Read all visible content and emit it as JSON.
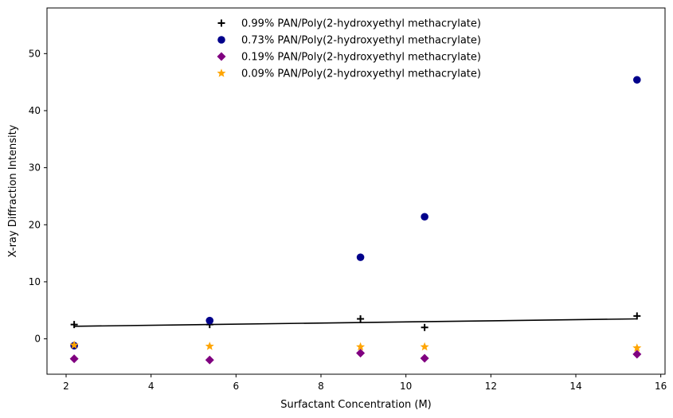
{
  "chart_data": {
    "type": "scatter",
    "title": "",
    "xlabel": "Surfactant Concentration (M)",
    "ylabel": "X-ray Diffraction Intensity",
    "xlim": [
      1.55,
      16.1
    ],
    "ylim": [
      -6.2,
      58.0
    ],
    "xticks": [
      2,
      4,
      6,
      8,
      10,
      12,
      14,
      16
    ],
    "yticks": [
      0,
      10,
      20,
      30,
      40,
      50
    ],
    "grid": false,
    "legend_position": "top-center",
    "series": [
      {
        "name": "0.99% PAN/Poly(2-hydroxyethyl methacrylate)",
        "marker": "plus",
        "color": "#000000",
        "x": [
          2.19,
          5.38,
          8.93,
          10.44,
          15.44
        ],
        "y": [
          2.5,
          2.5,
          3.5,
          2.0,
          4.0
        ]
      },
      {
        "name": "0.73% PAN/Poly(2-hydroxyethyl methacrylate)",
        "marker": "circle",
        "color": "#00008b",
        "x": [
          2.19,
          5.38,
          8.93,
          10.44,
          15.44
        ],
        "y": [
          -1.2,
          3.2,
          14.3,
          21.4,
          45.4
        ]
      },
      {
        "name": "0.19% PAN/Poly(2-hydroxyethyl methacrylate)",
        "marker": "diamond",
        "color": "#800080",
        "x": [
          2.19,
          5.38,
          8.93,
          10.44,
          15.44
        ],
        "y": [
          -3.5,
          -3.7,
          -2.5,
          -3.4,
          -2.7
        ]
      },
      {
        "name": "0.09% PAN/Poly(2-hydroxyethyl methacrylate)",
        "marker": "star",
        "color": "#ffa500",
        "x": [
          2.19,
          5.38,
          8.93,
          10.44,
          15.44
        ],
        "y": [
          -1.1,
          -1.3,
          -1.4,
          -1.4,
          -1.6
        ]
      }
    ],
    "fit_line": {
      "color": "#000000",
      "x": [
        2.19,
        15.44
      ],
      "y": [
        2.2,
        3.5
      ]
    }
  }
}
